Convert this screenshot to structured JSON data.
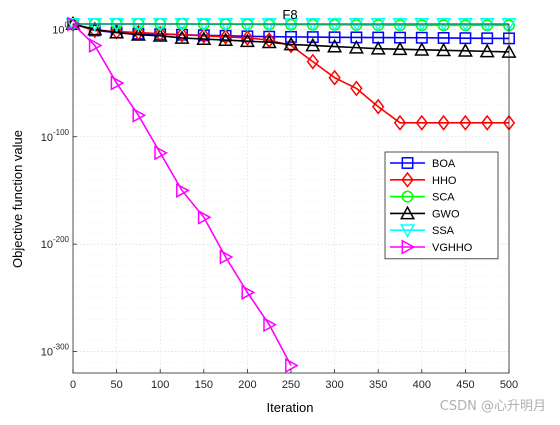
{
  "chart_data": {
    "type": "line",
    "title": "F8",
    "xlabel": "Iteration",
    "ylabel": "Objective function value",
    "xlim": [
      0,
      500
    ],
    "yscale": "log",
    "ylog_range": [
      -320,
      5
    ],
    "grid": true,
    "legend_position": "right-middle",
    "xticks": [
      0,
      50,
      100,
      150,
      200,
      250,
      300,
      350,
      400,
      450,
      500
    ],
    "xtick_labels": [
      "0",
      "50",
      "100",
      "150",
      "200",
      "250",
      "300",
      "350",
      "400",
      "450",
      "500"
    ],
    "yticks_exp": [
      0,
      -100,
      -200,
      -300
    ],
    "ytick_labels": [
      {
        "base": "10",
        "exp": "0"
      },
      {
        "base": "10",
        "exp": "-100"
      },
      {
        "base": "10",
        "exp": "-200"
      },
      {
        "base": "10",
        "exp": "-300"
      }
    ],
    "series": [
      {
        "name": "BOA",
        "color": "#0000ff",
        "marker": "square",
        "x": [
          0,
          25,
          50,
          75,
          100,
          125,
          150,
          175,
          200,
          225,
          250,
          275,
          300,
          325,
          350,
          375,
          400,
          425,
          450,
          475,
          500
        ],
        "log10_y": [
          10,
          -1,
          -3,
          -4,
          -4.5,
          -5,
          -5.5,
          -6,
          -6.5,
          -6.8,
          -7,
          -7.2,
          -7.4,
          -7.5,
          -7.6,
          -7.7,
          -7.8,
          -8,
          -8.2,
          -8.3,
          -8.4
        ]
      },
      {
        "name": "HHO",
        "color": "#ff0000",
        "marker": "diamond",
        "x": [
          0,
          25,
          50,
          75,
          100,
          125,
          150,
          175,
          200,
          225,
          250,
          275,
          300,
          325,
          350,
          375,
          400,
          425,
          450,
          475,
          500
        ],
        "log10_y": [
          10,
          -1,
          -2,
          -3,
          -4,
          -5,
          -6,
          -7,
          -8,
          -10,
          -15,
          -30,
          -45,
          -55,
          -72,
          -87,
          -87,
          -87,
          -87,
          -87,
          -87
        ]
      },
      {
        "name": "SCA",
        "color": "#00ff00",
        "marker": "circle",
        "x": [
          0,
          25,
          50,
          75,
          100,
          125,
          150,
          175,
          200,
          225,
          250,
          275,
          300,
          325,
          350,
          375,
          400,
          425,
          450,
          475,
          500
        ],
        "log10_y": [
          10,
          7,
          6,
          5.5,
          5.2,
          5,
          4.8,
          4.7,
          4.6,
          4.5,
          4.4,
          4.3,
          4.2,
          4.1,
          4,
          3.9,
          3.8,
          3.8,
          3.8,
          3.8,
          3.8
        ]
      },
      {
        "name": "GWO",
        "color": "#000000",
        "marker": "triangle-up",
        "x": [
          0,
          25,
          50,
          75,
          100,
          125,
          150,
          175,
          200,
          225,
          250,
          275,
          300,
          325,
          350,
          375,
          400,
          425,
          450,
          475,
          500
        ],
        "log10_y": [
          10,
          0,
          -3,
          -5,
          -6,
          -8,
          -9,
          -10,
          -11,
          -12,
          -14,
          -15,
          -16,
          -17,
          -18,
          -18.5,
          -19,
          -19.5,
          -20,
          -20.5,
          -21
        ]
      },
      {
        "name": "SSA",
        "color": "#00ffff",
        "marker": "triangle-down",
        "x": [
          0,
          25,
          50,
          75,
          100,
          125,
          150,
          175,
          200,
          225,
          250,
          275,
          300,
          325,
          350,
          375,
          400,
          425,
          450,
          475,
          500
        ],
        "log10_y": [
          10,
          9.3,
          9.1,
          9,
          9,
          9,
          9,
          9,
          9,
          9,
          9,
          9,
          9,
          9,
          9,
          9,
          9,
          9,
          9,
          9,
          9
        ]
      },
      {
        "name": "VGHHO",
        "color": "#ff00ff",
        "marker": "triangle-right",
        "x": [
          0,
          25,
          50,
          75,
          100,
          125,
          150,
          175,
          200,
          225,
          250
        ],
        "log10_y": [
          10,
          -15,
          -50,
          -80,
          -115,
          -150,
          -175,
          -212,
          -245,
          -275,
          -313
        ]
      }
    ]
  },
  "watermark": "CSDN @心升明月"
}
